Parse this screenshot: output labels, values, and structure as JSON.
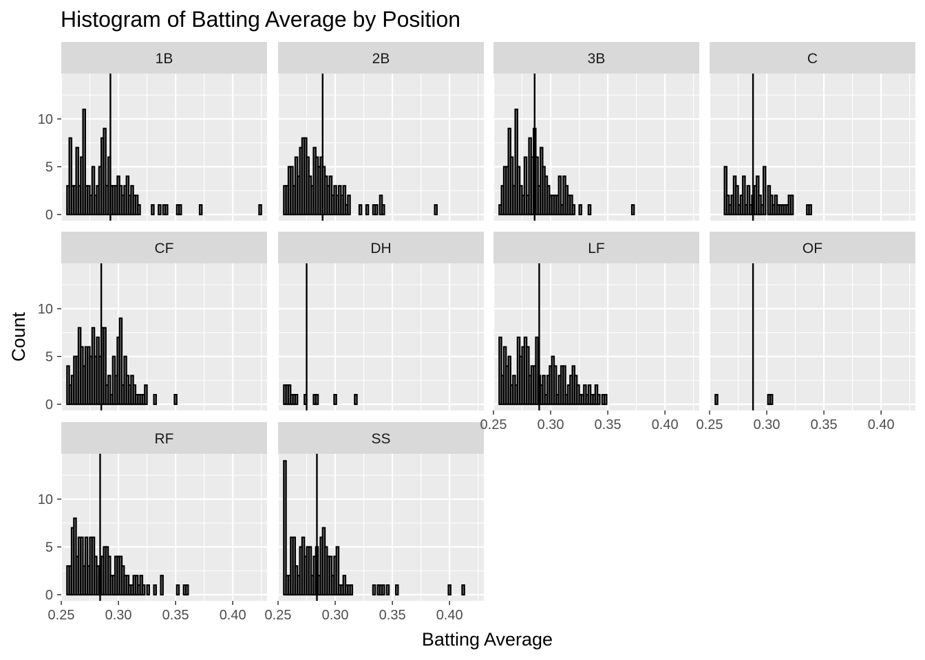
{
  "chart_data": {
    "type": "histogram",
    "title": "Histogram of Batting Average by Position",
    "xlabel": "Batting Average",
    "ylabel": "Count",
    "xlim": [
      0.25,
      0.43
    ],
    "ylim": [
      0,
      15
    ],
    "x_ticks": [
      0.25,
      0.3,
      0.35,
      0.4
    ],
    "x_tick_labels": [
      "0.25",
      "0.30",
      "0.35",
      "0.40"
    ],
    "y_ticks": [
      0,
      5,
      10
    ],
    "y_tick_labels": [
      "0",
      "5",
      "10"
    ],
    "bin_start": 0.255,
    "bin_width": 0.002,
    "bin_count": 85,
    "grid": true,
    "colors": {
      "panel_bg": "#ebebeb",
      "strip_bg": "#d9d9d9",
      "grid": "#ffffff",
      "bar_fill": "#7f7f7f",
      "bar_outline": "#000000",
      "mean_line": "#000000"
    },
    "panels": [
      {
        "name": "1B",
        "mean": 0.293,
        "counts": [
          3,
          8,
          3,
          3,
          7,
          3,
          6,
          11,
          3,
          3,
          2,
          5,
          2,
          3,
          5,
          8,
          9,
          3,
          6,
          3,
          3,
          3,
          4,
          3,
          2,
          3,
          4,
          2,
          3,
          2,
          2,
          1,
          0,
          0,
          0,
          0,
          0,
          1,
          0,
          0,
          1,
          0,
          1,
          1,
          0,
          0,
          0,
          0,
          1,
          1,
          0,
          0,
          0,
          0,
          0,
          0,
          0,
          0,
          1,
          0,
          0,
          0,
          0,
          0,
          0,
          0,
          0,
          0,
          0,
          0,
          0,
          0,
          0,
          0,
          0,
          0,
          0,
          0,
          0,
          0,
          0,
          0,
          0,
          0,
          1
        ]
      },
      {
        "name": "2B",
        "mean": 0.289,
        "counts": [
          3,
          3,
          5,
          5,
          3,
          6,
          4,
          7,
          8,
          8,
          6,
          4,
          3,
          7,
          6,
          5,
          6,
          5,
          4,
          3,
          4,
          2,
          3,
          2,
          3,
          2,
          3,
          1,
          2,
          0,
          0,
          0,
          0,
          1,
          0,
          0,
          1,
          0,
          0,
          1,
          1,
          0,
          2,
          1,
          0,
          0,
          0,
          0,
          0,
          0,
          0,
          0,
          0,
          0,
          0,
          0,
          0,
          0,
          0,
          0,
          0,
          0,
          0,
          0,
          0,
          0,
          1,
          0,
          0,
          0,
          0,
          0,
          0,
          0,
          0,
          0,
          0,
          0,
          0,
          0,
          0,
          0,
          0,
          0,
          0
        ]
      },
      {
        "name": "3B",
        "mean": 0.286,
        "counts": [
          1,
          3,
          5,
          5,
          9,
          6,
          3,
          11,
          5,
          3,
          2,
          6,
          2,
          8,
          6,
          9,
          6,
          3,
          7,
          5,
          4,
          3,
          2,
          2,
          2,
          2,
          4,
          1,
          4,
          3,
          2,
          2,
          1,
          0,
          0,
          1,
          0,
          0,
          0,
          1,
          0,
          0,
          0,
          0,
          0,
          0,
          0,
          0,
          0,
          0,
          0,
          0,
          0,
          0,
          0,
          0,
          0,
          0,
          1,
          0,
          0,
          0,
          0,
          0,
          0,
          0,
          0,
          0,
          0,
          0,
          0,
          0,
          0,
          0,
          0,
          0,
          0,
          0,
          0,
          0,
          0,
          0,
          0,
          0,
          0
        ]
      },
      {
        "name": "C",
        "mean": 0.288,
        "counts": [
          0,
          0,
          0,
          0,
          5,
          2,
          1,
          2,
          4,
          3,
          1,
          2,
          4,
          1,
          3,
          1,
          2,
          3,
          4,
          2,
          1,
          5,
          0,
          3,
          2,
          1,
          2,
          1,
          1,
          1,
          1,
          1,
          2,
          2,
          0,
          0,
          0,
          0,
          0,
          0,
          1,
          1,
          0,
          0,
          0,
          0,
          0,
          0,
          0,
          0,
          0,
          0,
          0,
          0,
          0,
          0,
          0,
          0,
          0,
          0,
          0,
          0,
          0,
          0,
          0,
          0,
          0,
          0,
          0,
          0,
          0,
          0,
          0,
          0,
          0,
          0,
          0,
          0,
          0,
          0,
          0,
          0,
          0,
          0,
          0
        ]
      },
      {
        "name": "CF",
        "mean": 0.285,
        "counts": [
          4,
          2,
          3,
          5,
          5,
          8,
          6,
          4,
          6,
          6,
          5,
          8,
          5,
          7,
          5,
          8,
          8,
          2,
          3,
          1,
          5,
          3,
          7,
          9,
          2,
          5,
          3,
          2,
          3,
          2,
          1,
          1,
          1,
          1,
          2,
          0,
          0,
          0,
          1,
          0,
          0,
          0,
          0,
          0,
          0,
          0,
          0,
          1,
          0,
          0,
          0,
          0,
          0,
          0,
          0,
          0,
          0,
          0,
          0,
          0,
          0,
          0,
          0,
          0,
          0,
          0,
          0,
          0,
          0,
          0,
          0,
          0,
          0,
          0,
          0,
          0,
          0,
          0,
          0,
          0,
          0,
          0,
          0,
          0,
          0
        ]
      },
      {
        "name": "DH",
        "mean": 0.275,
        "counts": [
          2,
          2,
          2,
          1,
          1,
          1,
          0,
          0,
          0,
          1,
          0,
          0,
          0,
          1,
          1,
          0,
          0,
          0,
          0,
          0,
          0,
          0,
          1,
          0,
          0,
          0,
          0,
          0,
          0,
          0,
          0,
          1,
          0,
          0,
          0,
          0,
          0,
          0,
          0,
          0,
          0,
          0,
          0,
          0,
          0,
          0,
          0,
          0,
          0,
          0,
          0,
          0,
          0,
          0,
          0,
          0,
          0,
          0,
          0,
          0,
          0,
          0,
          0,
          0,
          0,
          0,
          0,
          0,
          0,
          0,
          0,
          0,
          0,
          0,
          0,
          0,
          0,
          0,
          0,
          0,
          0,
          0,
          0,
          0,
          0
        ]
      },
      {
        "name": "LF",
        "mean": 0.29,
        "counts": [
          7,
          3,
          6,
          4,
          5,
          2,
          3,
          2,
          7,
          5,
          6,
          7,
          6,
          3,
          4,
          4,
          7,
          3,
          2,
          3,
          1,
          3,
          4,
          5,
          4,
          1,
          3,
          4,
          4,
          1,
          2,
          3,
          4,
          3,
          2,
          1,
          1,
          2,
          1,
          2,
          1,
          1,
          2,
          1,
          0,
          1,
          1,
          0,
          0,
          0,
          0,
          0,
          0,
          0,
          0,
          0,
          0,
          0,
          0,
          0,
          0,
          0,
          0,
          0,
          0,
          0,
          0,
          0,
          0,
          0,
          0,
          0,
          0,
          0,
          0,
          0,
          0,
          0,
          0,
          0,
          0,
          0,
          0,
          0,
          0
        ]
      },
      {
        "name": "OF",
        "mean": 0.288,
        "counts": [
          1,
          0,
          0,
          0,
          0,
          0,
          0,
          0,
          0,
          0,
          0,
          0,
          0,
          0,
          0,
          0,
          0,
          0,
          0,
          0,
          0,
          0,
          0,
          1,
          1,
          0,
          0,
          0,
          0,
          0,
          0,
          0,
          0,
          0,
          0,
          0,
          0,
          0,
          0,
          0,
          0,
          0,
          0,
          0,
          0,
          0,
          0,
          0,
          0,
          0,
          0,
          0,
          0,
          0,
          0,
          0,
          0,
          0,
          0,
          0,
          0,
          0,
          0,
          0,
          0,
          0,
          0,
          0,
          0,
          0,
          0,
          0,
          0,
          0,
          0,
          0,
          0,
          0,
          0,
          0,
          0,
          0,
          0,
          0,
          0
        ]
      },
      {
        "name": "RF",
        "mean": 0.284,
        "counts": [
          3,
          3,
          7,
          8,
          4,
          6,
          6,
          3,
          6,
          3,
          6,
          6,
          4,
          3,
          2,
          4,
          5,
          5,
          4,
          2,
          2,
          4,
          4,
          4,
          3,
          2,
          2,
          1,
          1,
          2,
          2,
          1,
          2,
          1,
          0,
          1,
          0,
          0,
          1,
          0,
          0,
          2,
          0,
          0,
          0,
          0,
          0,
          0,
          1,
          0,
          0,
          1,
          1,
          0,
          0,
          0,
          0,
          0,
          0,
          0,
          0,
          0,
          0,
          0,
          0,
          0,
          0,
          0,
          0,
          0,
          0,
          0,
          0,
          0,
          0,
          0,
          0,
          0,
          0,
          0,
          0,
          0,
          0,
          0,
          0
        ]
      },
      {
        "name": "SS",
        "mean": 0.284,
        "counts": [
          14,
          2,
          2,
          6,
          6,
          3,
          2,
          5,
          6,
          4,
          5,
          5,
          2,
          4,
          5,
          2,
          6,
          7,
          5,
          4,
          4,
          2,
          4,
          5,
          1,
          1,
          2,
          1,
          1,
          1,
          0,
          0,
          0,
          0,
          0,
          0,
          0,
          0,
          0,
          1,
          0,
          1,
          1,
          1,
          0,
          1,
          0,
          0,
          0,
          1,
          0,
          0,
          0,
          0,
          0,
          0,
          0,
          0,
          0,
          0,
          0,
          0,
          0,
          0,
          0,
          0,
          0,
          0,
          0,
          0,
          0,
          0,
          1,
          0,
          0,
          0,
          0,
          0,
          1,
          0,
          0,
          0,
          0,
          0,
          0
        ]
      }
    ]
  }
}
